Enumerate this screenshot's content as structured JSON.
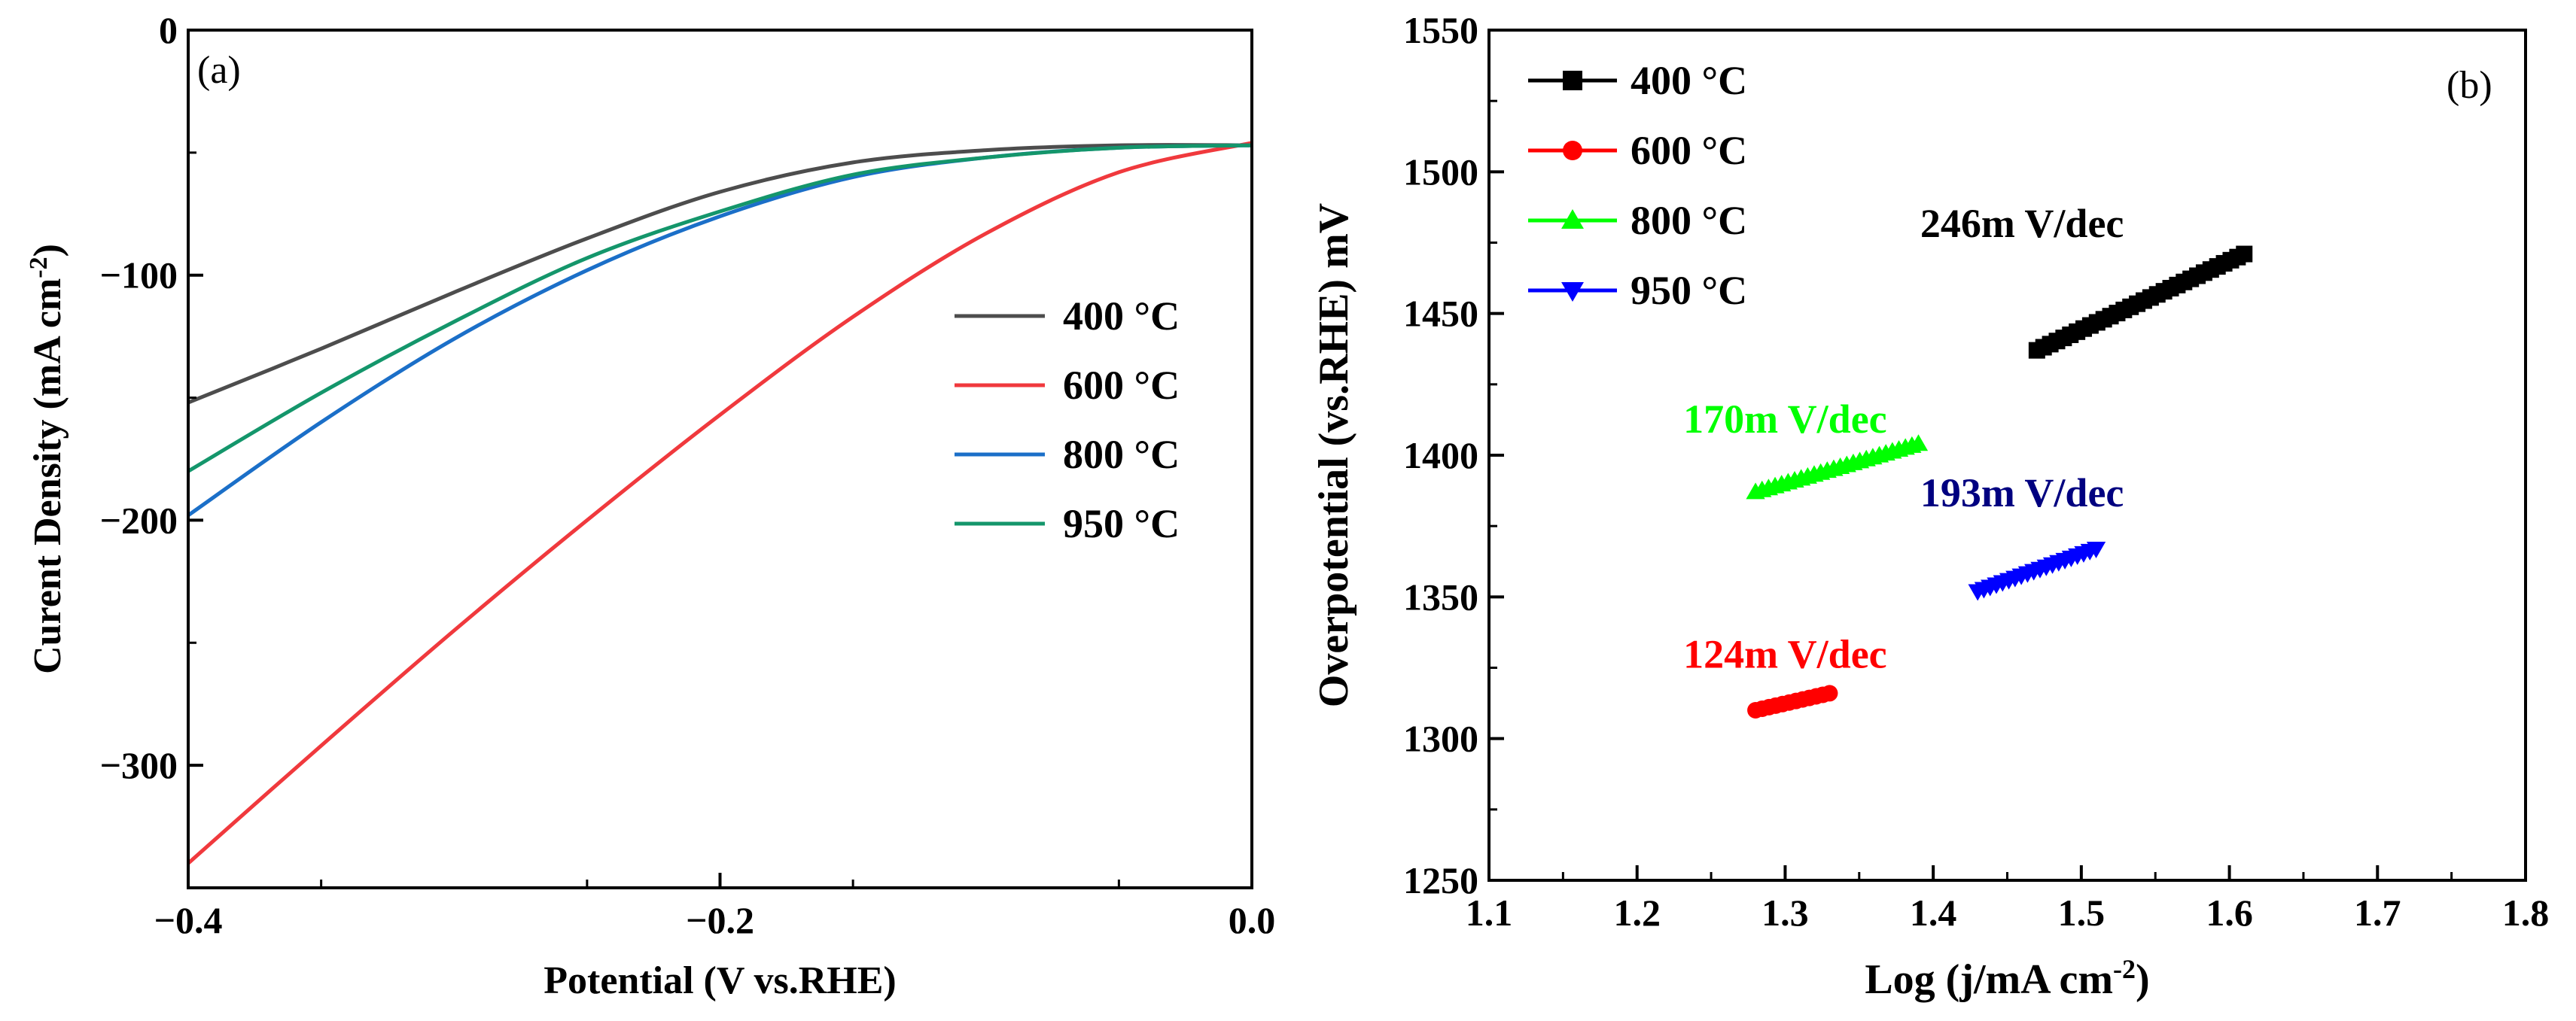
{
  "chart_data": [
    {
      "panel": "(a)",
      "type": "line",
      "xlabel": "Potential (V vs.RHE)",
      "ylabel": "Curent Density (mA cm",
      "ylabel_sup": "-2",
      "ylabel_close": ")",
      "xlim": [
        -0.4,
        0.0
      ],
      "ylim": [
        -350,
        0
      ],
      "xticks": [
        -0.4,
        -0.2,
        0.0
      ],
      "xtick_labels": [
        "−0.4",
        "−0.2",
        "0.0"
      ],
      "yticks": [
        0,
        -100,
        -200,
        -300
      ],
      "ytick_labels": [
        "0",
        "−100",
        "−200",
        "−300"
      ],
      "legend_position": "center-right",
      "series": [
        {
          "name": "400 °C",
          "color": "#4d4d4d",
          "x": [
            -0.4,
            -0.35,
            -0.3,
            -0.25,
            -0.2,
            -0.15,
            -0.1,
            -0.05,
            0.0
          ],
          "y": [
            -152,
            -130,
            -107,
            -85,
            -66,
            -54,
            -49,
            -47,
            -47
          ]
        },
        {
          "name": "600 °C",
          "color": "#f0393d",
          "x": [
            -0.4,
            -0.35,
            -0.3,
            -0.25,
            -0.2,
            -0.15,
            -0.1,
            -0.05,
            0.0
          ],
          "y": [
            -340,
            -292,
            -245,
            -200,
            -157,
            -117,
            -83,
            -58,
            -46
          ]
        },
        {
          "name": "800 °C",
          "color": "#1b6fc8",
          "x": [
            -0.4,
            -0.35,
            -0.3,
            -0.25,
            -0.2,
            -0.15,
            -0.1,
            -0.05,
            0.0
          ],
          "y": [
            -198,
            -160,
            -126,
            -98,
            -76,
            -60,
            -52,
            -48,
            -47
          ]
        },
        {
          "name": "950 °C",
          "color": "#14966b",
          "x": [
            -0.4,
            -0.35,
            -0.3,
            -0.25,
            -0.2,
            -0.15,
            -0.1,
            -0.05,
            0.0
          ],
          "y": [
            -180,
            -148,
            -119,
            -93,
            -74,
            -59,
            -52,
            -48,
            -47
          ]
        }
      ]
    },
    {
      "panel": "(b)",
      "type": "scatter",
      "xlabel": "Log (j/mA cm",
      "xlabel_sup": "-2",
      "xlabel_close": ")",
      "ylabel": "Overpotential (vs.RHE) mV",
      "xlim": [
        1.1,
        1.8
      ],
      "ylim": [
        1250,
        1550
      ],
      "xticks": [
        1.1,
        1.2,
        1.3,
        1.4,
        1.5,
        1.6,
        1.7,
        1.8
      ],
      "xtick_labels": [
        "1.1",
        "1.2",
        "1.3",
        "1.4",
        "1.5",
        "1.6",
        "1.7",
        "1.8"
      ],
      "yticks": [
        1250,
        1300,
        1350,
        1400,
        1450,
        1500,
        1550
      ],
      "ytick_labels": [
        "1250",
        "1300",
        "1350",
        "1400",
        "1450",
        "1500",
        "1550"
      ],
      "legend_position": "top-left",
      "series": [
        {
          "name": "400 °C",
          "color": "#000000",
          "marker": "square",
          "x_start": 1.47,
          "x_end": 1.61,
          "y_start": 1437,
          "y_end": 1471,
          "n_points": 32
        },
        {
          "name": "600 °C",
          "color": "#ff0000",
          "marker": "circle",
          "x_start": 1.28,
          "x_end": 1.33,
          "y_start": 1310,
          "y_end": 1316,
          "n_points": 12
        },
        {
          "name": "800 °C",
          "color": "#00ff00",
          "marker": "triangle-up",
          "x_start": 1.28,
          "x_end": 1.39,
          "y_start": 1387,
          "y_end": 1404,
          "n_points": 26
        },
        {
          "name": "950 °C",
          "color": "#0000ff",
          "marker": "triangle-down",
          "x_start": 1.43,
          "x_end": 1.51,
          "y_start": 1352,
          "y_end": 1367,
          "n_points": 20
        }
      ],
      "annotations": [
        {
          "text": "246m V/dec",
          "color": "#000000",
          "x": 1.46,
          "y": 1477
        },
        {
          "text": "170m V/dec",
          "color": "#00ff00",
          "x": 1.3,
          "y": 1408
        },
        {
          "text": "193m V/dec",
          "color": "#000080",
          "x": 1.46,
          "y": 1382
        },
        {
          "text": "124m V/dec",
          "color": "#ff0000",
          "x": 1.3,
          "y": 1325
        }
      ]
    }
  ]
}
